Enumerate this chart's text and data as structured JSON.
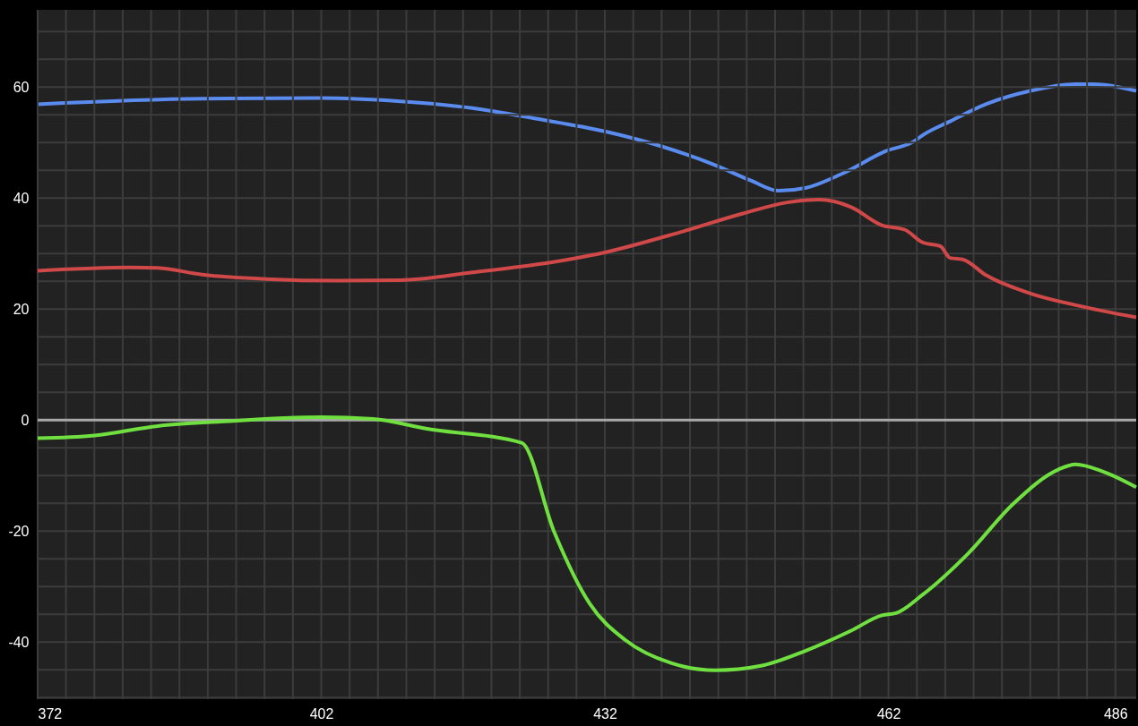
{
  "chart_data": {
    "type": "line",
    "xlim": [
      372,
      488.2
    ],
    "ylim": [
      -50.3,
      73.9
    ],
    "xticks": [
      372,
      {
        "value": 375,
        "label": null
      },
      {
        "value": 378,
        "label": null
      },
      {
        "value": 381,
        "label": null
      },
      {
        "value": 384,
        "label": null
      },
      {
        "value": 387,
        "label": null
      },
      {
        "value": 390,
        "label": null
      },
      {
        "value": 393,
        "label": null
      },
      {
        "value": 396,
        "label": null
      },
      {
        "value": 399,
        "label": null
      },
      402,
      {
        "value": 405,
        "label": null
      },
      {
        "value": 408,
        "label": null
      },
      {
        "value": 411,
        "label": null
      },
      {
        "value": 414,
        "label": null
      },
      {
        "value": 417,
        "label": null
      },
      {
        "value": 420,
        "label": null
      },
      {
        "value": 423,
        "label": null
      },
      {
        "value": 426,
        "label": null
      },
      {
        "value": 429,
        "label": null
      },
      432,
      {
        "value": 435,
        "label": null
      },
      {
        "value": 438,
        "label": null
      },
      {
        "value": 441,
        "label": null
      },
      {
        "value": 444,
        "label": null
      },
      {
        "value": 447,
        "label": null
      },
      {
        "value": 450,
        "label": null
      },
      {
        "value": 453,
        "label": null
      },
      {
        "value": 456,
        "label": null
      },
      {
        "value": 459,
        "label": null
      },
      462,
      {
        "value": 465,
        "label": null
      },
      {
        "value": 468,
        "label": null
      },
      {
        "value": 471,
        "label": null
      },
      {
        "value": 474,
        "label": null
      },
      {
        "value": 477,
        "label": null
      },
      {
        "value": 480,
        "label": null
      },
      {
        "value": 483,
        "label": null
      },
      486
    ],
    "yticks": [
      {
        "value": -50,
        "label": null
      },
      {
        "value": -45,
        "label": null
      },
      -40,
      {
        "value": -35,
        "label": null
      },
      {
        "value": -30,
        "label": null
      },
      {
        "value": -25,
        "label": null
      },
      -20,
      {
        "value": -15,
        "label": null
      },
      {
        "value": -10,
        "label": null
      },
      {
        "value": -5,
        "label": null
      },
      0,
      {
        "value": 5,
        "label": null
      },
      {
        "value": 10,
        "label": null
      },
      {
        "value": 15,
        "label": null
      },
      20,
      {
        "value": 25,
        "label": null
      },
      {
        "value": 30,
        "label": null
      },
      {
        "value": 35,
        "label": null
      },
      40,
      {
        "value": 45,
        "label": null
      },
      {
        "value": 50,
        "label": null
      },
      {
        "value": 55,
        "label": null
      },
      60,
      {
        "value": 65,
        "label": null
      },
      {
        "value": 70,
        "label": null
      }
    ],
    "grid": true,
    "marker": "none",
    "line_style": "solid",
    "ref_lines": [
      {
        "axis": "y",
        "value": 0,
        "color": "#a8a8a8"
      }
    ],
    "series": [
      {
        "color": "#5a8cf0",
        "x": [
          372,
          389.4,
          402,
          410.4,
          418,
          424.7,
          432,
          438,
          443.7,
          447.5,
          450.4,
          453.2,
          457,
          461.8,
          464.7,
          465.6,
          468.5,
          472.3,
          477,
          481.8,
          483.7,
          488.2
        ],
        "values": [
          56.9,
          57.9,
          58.0,
          57.4,
          56.2,
          54.3,
          52.0,
          49.3,
          45.9,
          43.1,
          41.3,
          41.8,
          44.3,
          48.5,
          50.2,
          51.3,
          53.8,
          56.9,
          59.3,
          60.5,
          60.5,
          59.3
        ]
      },
      {
        "color": "#d04848",
        "x": [
          372,
          381.8,
          384.7,
          389.4,
          396.1,
          403.7,
          410.4,
          418,
          424.7,
          432,
          439.9,
          446.6,
          451.3,
          454.7,
          458,
          461.3,
          463.7,
          465.6,
          467.5,
          468.5,
          469.9,
          472.3,
          477,
          481.8,
          488.2
        ],
        "values": [
          26.9,
          27.5,
          27.4,
          26.2,
          25.4,
          25.1,
          25.2,
          26.6,
          28.0,
          30.2,
          33.8,
          37.2,
          39.2,
          39.7,
          38.4,
          35.1,
          34.3,
          32.0,
          31.3,
          29.2,
          28.9,
          26.1,
          22.8,
          20.7,
          18.5
        ]
      },
      {
        "color": "#6fe040",
        "x": [
          372,
          378,
          384.7,
          391.3,
          402,
          407.5,
          413.2,
          423.2,
          426.6,
          430.4,
          434.2,
          439,
          443.7,
          448.5,
          453.2,
          458,
          461.3,
          462.8,
          465.6,
          470.4,
          475.2,
          480,
          481.8,
          484.7,
          488.2
        ],
        "values": [
          -3.3,
          -2.8,
          -1.1,
          -0.3,
          0.5,
          0.2,
          -1.6,
          -4.1,
          -20.0,
          -33.1,
          -39.7,
          -43.8,
          -45.1,
          -44.3,
          -41.6,
          -38.0,
          -35.2,
          -34.8,
          -31.5,
          -24.1,
          -15.1,
          -8.9,
          -8.0,
          -9.3,
          -12.1
        ]
      }
    ]
  }
}
